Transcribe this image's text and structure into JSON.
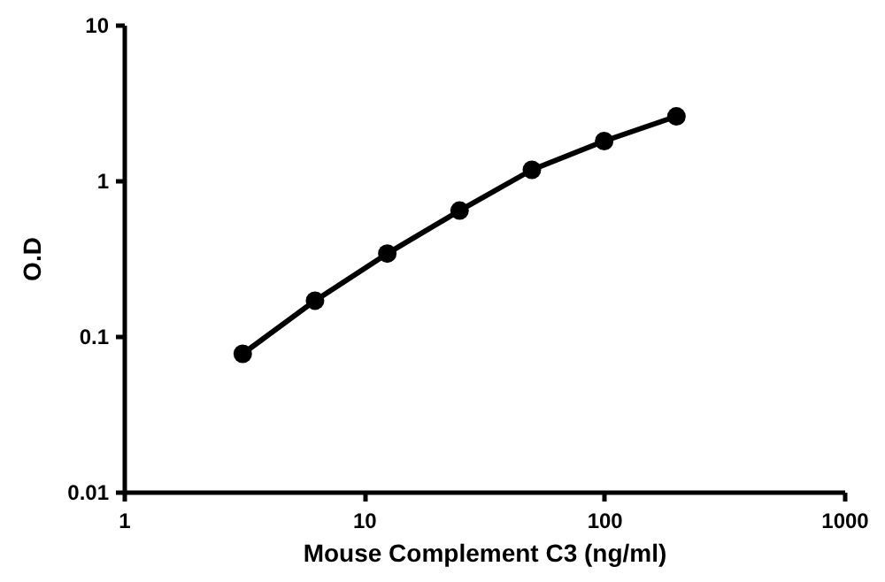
{
  "chart_data": {
    "type": "line",
    "xlabel": "Mouse Complement C3 (ng/ml)",
    "ylabel": "O.D",
    "x": [
      3.125,
      6.25,
      12.5,
      25,
      50,
      100,
      200
    ],
    "series": [
      {
        "color": "#000000",
        "values": [
          0.077,
          0.169,
          0.339,
          0.64,
          1.17,
          1.79,
          2.58
        ]
      }
    ],
    "log": "xy",
    "xlim": [
      1,
      1000
    ],
    "xticks": [
      1,
      10,
      100,
      1000
    ],
    "ylim": [
      0.01,
      10
    ],
    "yticks": [
      0.01,
      0.1,
      1,
      10
    ],
    "grid": false,
    "marker": "circle",
    "line_style": "solid"
  }
}
